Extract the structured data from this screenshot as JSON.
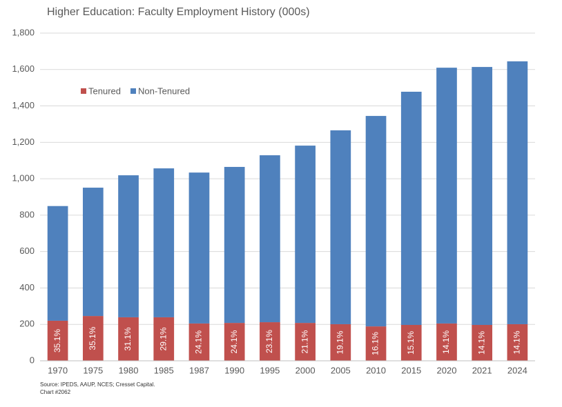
{
  "chart_data": {
    "type": "stacked-bar",
    "title": "Higher Education: Faculty Employment History (000s)",
    "categories": [
      "1970",
      "1975",
      "1980",
      "1985",
      "1987",
      "1990",
      "1995",
      "2000",
      "2005",
      "2010",
      "2015",
      "2020",
      "2021",
      "2024"
    ],
    "series": [
      {
        "name": "Tenured",
        "color": "#c0504d",
        "values": [
          220,
          246,
          239,
          239,
          205,
          208,
          212,
          208,
          201,
          189,
          197,
          205,
          197,
          201
        ],
        "annotations": [
          "35.1%",
          "35.1%",
          "31.1%",
          "29.1%",
          "24.1%",
          "24.1%",
          "23.1%",
          "21.1%",
          "19.1%",
          "16.1%",
          "15.1%",
          "14.1%",
          "14.1%",
          "14.1%"
        ]
      },
      {
        "name": "Non-Tenured",
        "color": "#4f81bd",
        "values": [
          630,
          705,
          780,
          818,
          829,
          857,
          917,
          974,
          1065,
          1156,
          1281,
          1405,
          1417,
          1444
        ]
      }
    ],
    "ylim": [
      0,
      1800
    ],
    "yticks": [
      0,
      200,
      400,
      600,
      800,
      {
        "value": 1000,
        "label": "1,000"
      },
      {
        "value": 1200,
        "label": "1,200"
      },
      {
        "value": 1400,
        "label": "1,400"
      },
      {
        "value": 1600,
        "label": "1,600"
      },
      {
        "value": 1800,
        "label": "1,800"
      }
    ],
    "grid": true,
    "legend": "top-left",
    "source": "Source: IPEDS, AAUP, NCES; Cresset Capital.",
    "chart_id": "Chart #2062"
  }
}
